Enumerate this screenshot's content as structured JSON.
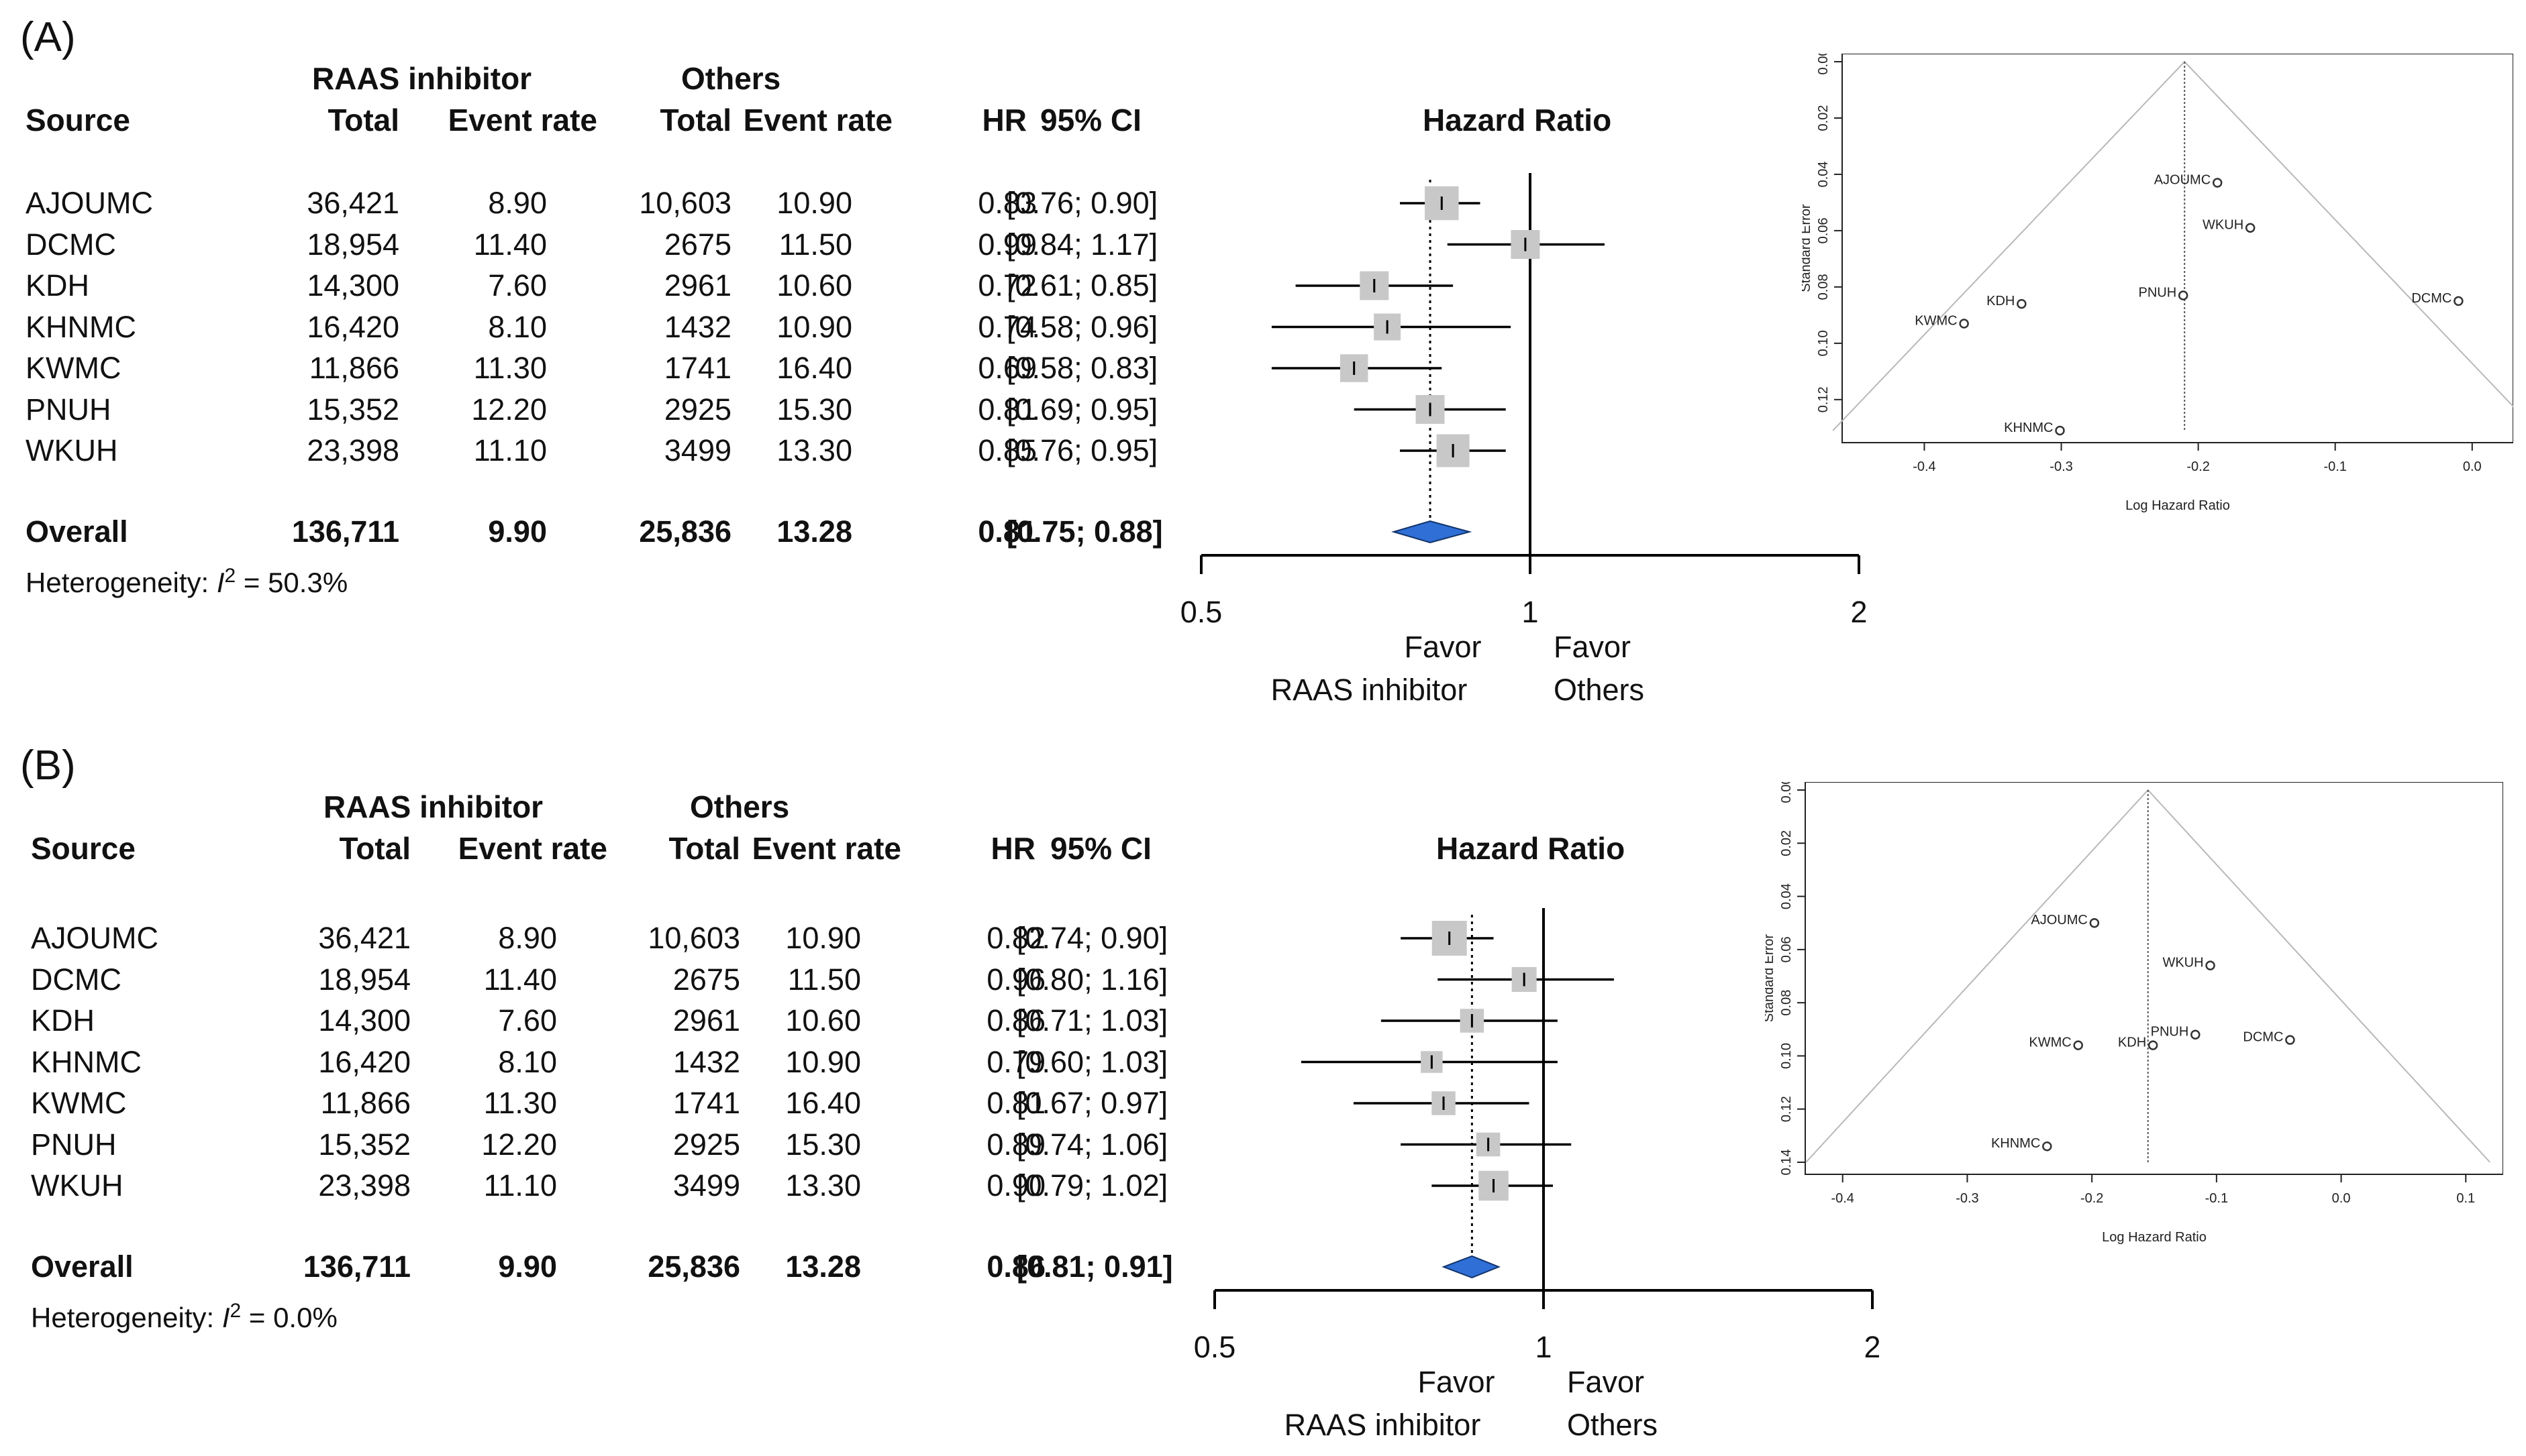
{
  "panels": [
    {
      "label": "(A)",
      "group1": "RAAS inhibitor",
      "group2": "Others",
      "headers": {
        "source": "Source",
        "total1": "Total",
        "rate1": "Event rate",
        "total2": "Total",
        "rate2": "Event rate",
        "hr": "HR",
        "ci": "95% CI",
        "plot": "Hazard Ratio"
      },
      "rows": [
        {
          "source": "AJOUMC",
          "total1": "36,421",
          "rate1": "8.90",
          "total2": "10,603",
          "rate2": "10.90",
          "hr": "0.83",
          "ci": "[0.76; 0.90]",
          "hr_val": 0.83,
          "lo": 0.76,
          "hi": 0.9,
          "weight": 0.95
        },
        {
          "source": "DCMC",
          "total1": "18,954",
          "rate1": "11.40",
          "total2": "2675",
          "rate2": "11.50",
          "hr": "0.99",
          "ci": "[0.84; 1.17]",
          "hr_val": 0.99,
          "lo": 0.84,
          "hi": 1.17,
          "weight": 0.7
        },
        {
          "source": "KDH",
          "total1": "14,300",
          "rate1": "7.60",
          "total2": "2961",
          "rate2": "10.60",
          "hr": "0.72",
          "ci": "[0.61; 0.85]",
          "hr_val": 0.72,
          "lo": 0.61,
          "hi": 0.85,
          "weight": 0.7
        },
        {
          "source": "KHNMC",
          "total1": "16,420",
          "rate1": "8.10",
          "total2": "1432",
          "rate2": "10.90",
          "hr": "0.74",
          "ci": "[0.58; 0.96]",
          "hr_val": 0.74,
          "lo": 0.58,
          "hi": 0.96,
          "weight": 0.6
        },
        {
          "source": "KWMC",
          "total1": "11,866",
          "rate1": "11.30",
          "total2": "1741",
          "rate2": "16.40",
          "hr": "0.69",
          "ci": "[0.58; 0.83]",
          "hr_val": 0.69,
          "lo": 0.58,
          "hi": 0.83,
          "weight": 0.65
        },
        {
          "source": "PNUH",
          "total1": "15,352",
          "rate1": "12.20",
          "total2": "2925",
          "rate2": "15.30",
          "hr": "0.81",
          "ci": "[0.69; 0.95]",
          "hr_val": 0.81,
          "lo": 0.69,
          "hi": 0.95,
          "weight": 0.7
        },
        {
          "source": "WKUH",
          "total1": "23,398",
          "rate1": "11.10",
          "total2": "3499",
          "rate2": "13.30",
          "hr": "0.85",
          "ci": "[0.76; 0.95]",
          "hr_val": 0.85,
          "lo": 0.76,
          "hi": 0.95,
          "weight": 0.9
        }
      ],
      "overall": {
        "source": "Overall",
        "total1": "136,711",
        "rate1": "9.90",
        "total2": "25,836",
        "rate2": "13.28",
        "hr": "0.81",
        "ci": "[0.75; 0.88]",
        "hr_val": 0.81,
        "lo": 0.75,
        "hi": 0.88
      },
      "heterogeneity_prefix": "Heterogeneity: ",
      "heterogeneity_symbol": "I",
      "heterogeneity_sup": "2",
      "heterogeneity_value": " = 50.3%",
      "axis_ticks": [
        "0.5",
        "1",
        "2"
      ],
      "favor_left": [
        "Favor",
        "RAAS inhibitor"
      ],
      "favor_right": [
        "Favor",
        "Others"
      ],
      "funnel": {
        "xlabel": "Log Hazard Ratio",
        "ylabel": "Standard Error",
        "xticks": [
          "-0.4",
          "-0.3",
          "-0.2",
          "-0.1",
          "0.0"
        ],
        "xtick_values": [
          -0.4,
          -0.3,
          -0.2,
          -0.1,
          0.0
        ],
        "yticks": [
          "0.00",
          "0.02",
          "0.04",
          "0.06",
          "0.08",
          "0.10",
          "0.12"
        ],
        "ytick_values": [
          0,
          0.02,
          0.04,
          0.06,
          0.08,
          0.1,
          0.12
        ],
        "xlim": [
          -0.46,
          0.03
        ],
        "ylim": [
          0,
          0.131
        ],
        "center": -0.21,
        "points": [
          {
            "label": "AJOUMC",
            "x": -0.186,
            "y": 0.043
          },
          {
            "label": "WKUH",
            "x": -0.162,
            "y": 0.059
          },
          {
            "label": "DCMC",
            "x": -0.01,
            "y": 0.085
          },
          {
            "label": "PNUH",
            "x": -0.211,
            "y": 0.083
          },
          {
            "label": "KDH",
            "x": -0.329,
            "y": 0.086
          },
          {
            "label": "KWMC",
            "x": -0.371,
            "y": 0.093
          },
          {
            "label": "KHNMC",
            "x": -0.301,
            "y": 0.131
          }
        ]
      }
    },
    {
      "label": "(B)",
      "group1": "RAAS inhibitor",
      "group2": "Others",
      "headers": {
        "source": "Source",
        "total1": "Total",
        "rate1": "Event rate",
        "total2": "Total",
        "rate2": "Event rate",
        "hr": "HR",
        "ci": "95% CI",
        "plot": "Hazard Ratio"
      },
      "rows": [
        {
          "source": "AJOUMC",
          "total1": "36,421",
          "rate1": "8.90",
          "total2": "10,603",
          "rate2": "10.90",
          "hr": "0.82",
          "ci": "[0.74; 0.90]",
          "hr_val": 0.82,
          "lo": 0.74,
          "hi": 0.9,
          "weight": 1.0
        },
        {
          "source": "DCMC",
          "total1": "18,954",
          "rate1": "11.40",
          "total2": "2675",
          "rate2": "11.50",
          "hr": "0.96",
          "ci": "[0.80; 1.16]",
          "hr_val": 0.96,
          "lo": 0.8,
          "hi": 1.16,
          "weight": 0.5
        },
        {
          "source": "KDH",
          "total1": "14,300",
          "rate1": "7.60",
          "total2": "2961",
          "rate2": "10.60",
          "hr": "0.86",
          "ci": "[0.71; 1.03]",
          "hr_val": 0.86,
          "lo": 0.71,
          "hi": 1.03,
          "weight": 0.45
        },
        {
          "source": "KHNMC",
          "total1": "16,420",
          "rate1": "8.10",
          "total2": "1432",
          "rate2": "10.90",
          "hr": "0.79",
          "ci": "[0.60; 1.03]",
          "hr_val": 0.79,
          "lo": 0.6,
          "hi": 1.03,
          "weight": 0.35
        },
        {
          "source": "KWMC",
          "total1": "11,866",
          "rate1": "11.30",
          "total2": "1741",
          "rate2": "16.40",
          "hr": "0.81",
          "ci": "[0.67; 0.97]",
          "hr_val": 0.81,
          "lo": 0.67,
          "hi": 0.97,
          "weight": 0.45
        },
        {
          "source": "PNUH",
          "total1": "15,352",
          "rate1": "12.20",
          "total2": "2925",
          "rate2": "15.30",
          "hr": "0.89",
          "ci": "[0.74; 1.06]",
          "hr_val": 0.89,
          "lo": 0.74,
          "hi": 1.06,
          "weight": 0.45
        },
        {
          "source": "WKUH",
          "total1": "23,398",
          "rate1": "11.10",
          "total2": "3499",
          "rate2": "13.30",
          "hr": "0.90",
          "ci": "[0.79; 1.02]",
          "hr_val": 0.9,
          "lo": 0.79,
          "hi": 1.02,
          "weight": 0.75
        }
      ],
      "overall": {
        "source": "Overall",
        "total1": "136,711",
        "rate1": "9.90",
        "total2": "25,836",
        "rate2": "13.28",
        "hr": "0.86",
        "ci": "[0.81; 0.91]",
        "hr_val": 0.86,
        "lo": 0.81,
        "hi": 0.91
      },
      "heterogeneity_prefix": "Heterogeneity: ",
      "heterogeneity_symbol": "I",
      "heterogeneity_sup": "2",
      "heterogeneity_value": " = 0.0%",
      "axis_ticks": [
        "0.5",
        "1",
        "2"
      ],
      "favor_left": [
        "Favor",
        "RAAS inhibitor"
      ],
      "favor_right": [
        "Favor",
        "Others"
      ],
      "funnel": {
        "xlabel": "Log Hazard Ratio",
        "ylabel": "Standard Error",
        "xticks": [
          "-0.4",
          "-0.3",
          "-0.2",
          "-0.1",
          "0.0",
          "0.1"
        ],
        "xtick_values": [
          -0.4,
          -0.3,
          -0.2,
          -0.1,
          0.0,
          0.1
        ],
        "yticks": [
          "0.00",
          "0.02",
          "0.04",
          "0.06",
          "0.08",
          "0.10",
          "0.12",
          "0.14"
        ],
        "ytick_values": [
          0,
          0.02,
          0.04,
          0.06,
          0.08,
          0.1,
          0.12,
          0.14
        ],
        "xlim": [
          -0.43,
          0.13
        ],
        "ylim": [
          0,
          0.14
        ],
        "center": -0.155,
        "points": [
          {
            "label": "AJOUMC",
            "x": -0.198,
            "y": 0.05
          },
          {
            "label": "WKUH",
            "x": -0.105,
            "y": 0.066
          },
          {
            "label": "PNUH",
            "x": -0.117,
            "y": 0.092
          },
          {
            "label": "DCMC",
            "x": -0.041,
            "y": 0.094
          },
          {
            "label": "KWMC",
            "x": -0.211,
            "y": 0.096
          },
          {
            "label": "KDH",
            "x": -0.151,
            "y": 0.096
          },
          {
            "label": "KHNMC",
            "x": -0.236,
            "y": 0.134
          }
        ]
      }
    }
  ],
  "style": {
    "square_color": "#c8c8c8",
    "diamond_color": "#2f6fd6",
    "line_color": "#000000",
    "funnel_line": "#b8b8b8"
  }
}
